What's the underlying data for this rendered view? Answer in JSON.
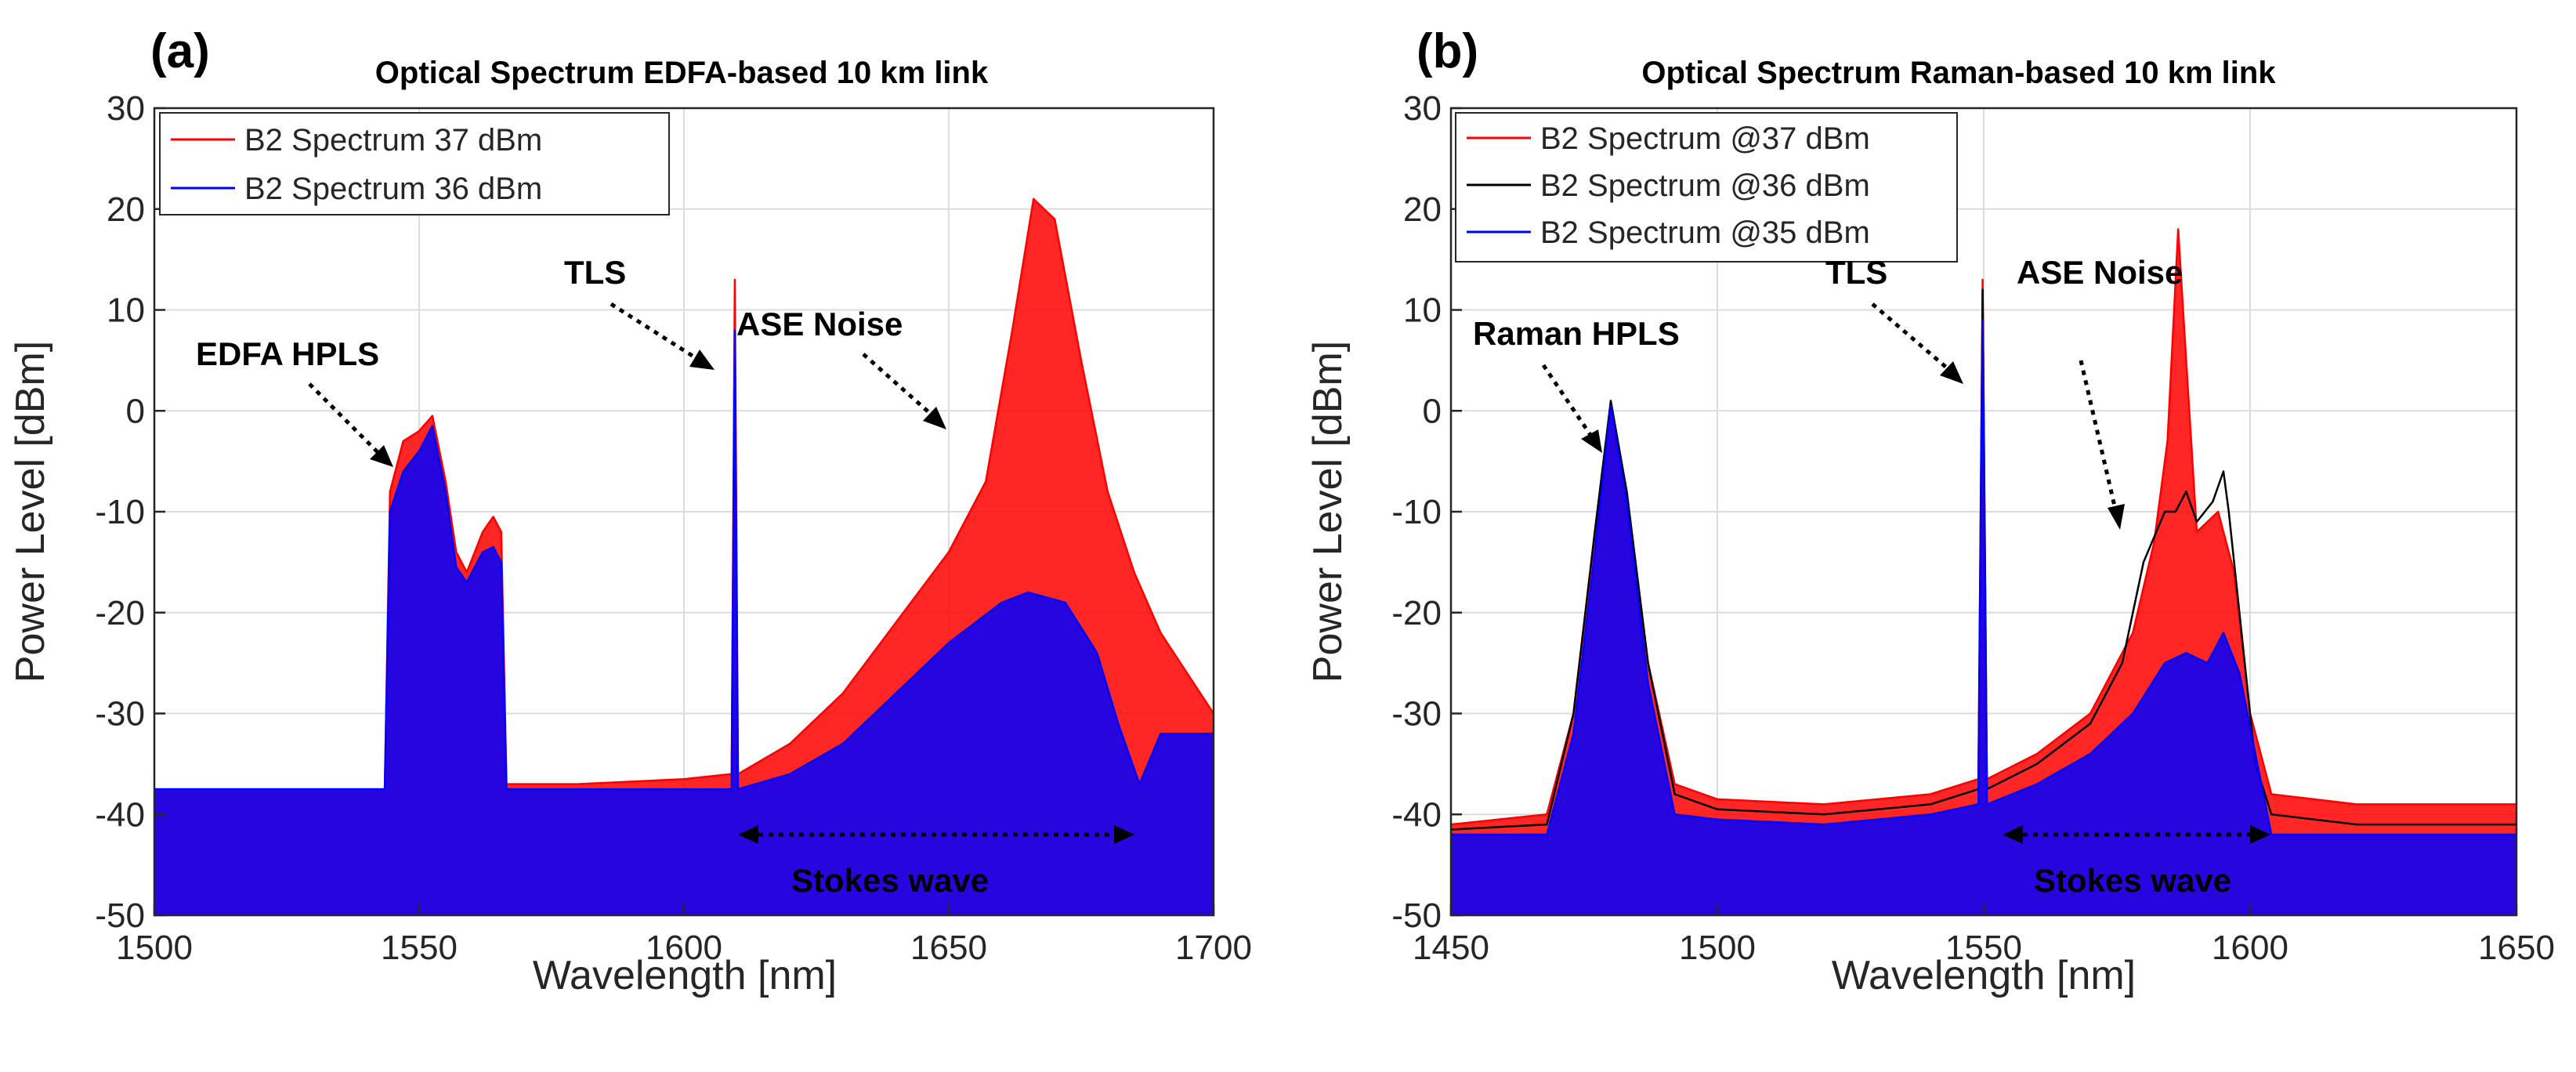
{
  "chart_data": [
    {
      "type": "line",
      "panel_label": "(a)",
      "title": "Optical Spectrum EDFA-based 10 km link",
      "xlabel": "Wavelength [nm]",
      "ylabel": "Power Level [dBm]",
      "xlim": [
        1500,
        1700
      ],
      "ylim": [
        -50,
        30
      ],
      "xticks": [
        1500,
        1550,
        1600,
        1650,
        1700
      ],
      "yticks": [
        -50,
        -40,
        -30,
        -20,
        -10,
        0,
        10,
        20,
        30
      ],
      "grid": true,
      "legend_position": "top-left",
      "series": [
        {
          "name": "B2 Spectrum 37 dBm",
          "color": "#ff0000",
          "line_width": 2.5,
          "fill_down": true,
          "points": [
            {
              "x": 1500,
              "y": -37.5
            },
            {
              "x": 1520,
              "y": -37.5
            },
            {
              "x": 1543.5,
              "y": -37.5
            },
            {
              "x": 1544.5,
              "y": -8
            },
            {
              "x": 1547,
              "y": -3
            },
            {
              "x": 1550,
              "y": -2
            },
            {
              "x": 1552.5,
              "y": -0.5
            },
            {
              "x": 1555,
              "y": -7
            },
            {
              "x": 1557,
              "y": -14
            },
            {
              "x": 1559,
              "y": -16
            },
            {
              "x": 1562,
              "y": -12
            },
            {
              "x": 1564,
              "y": -10.5
            },
            {
              "x": 1565.5,
              "y": -12
            },
            {
              "x": 1566.5,
              "y": -37
            },
            {
              "x": 1580,
              "y": -37
            },
            {
              "x": 1600,
              "y": -36.5
            },
            {
              "x": 1609,
              "y": -36
            },
            {
              "x": 1609.6,
              "y": 13
            },
            {
              "x": 1610.2,
              "y": -36
            },
            {
              "x": 1620,
              "y": -33
            },
            {
              "x": 1630,
              "y": -28
            },
            {
              "x": 1640,
              "y": -21
            },
            {
              "x": 1650,
              "y": -14
            },
            {
              "x": 1657,
              "y": -7
            },
            {
              "x": 1662,
              "y": 8
            },
            {
              "x": 1666,
              "y": 21
            },
            {
              "x": 1670,
              "y": 19
            },
            {
              "x": 1675,
              "y": 5
            },
            {
              "x": 1680,
              "y": -8
            },
            {
              "x": 1685,
              "y": -16
            },
            {
              "x": 1690,
              "y": -22
            },
            {
              "x": 1695,
              "y": -26
            },
            {
              "x": 1700,
              "y": -30
            }
          ]
        },
        {
          "name": "B2 Spectrum 36 dBm",
          "color": "#0000ff",
          "line_width": 2.5,
          "fill_down": true,
          "points": [
            {
              "x": 1500,
              "y": -37.5
            },
            {
              "x": 1543.5,
              "y": -37.5
            },
            {
              "x": 1544.5,
              "y": -10
            },
            {
              "x": 1547,
              "y": -6
            },
            {
              "x": 1550,
              "y": -4
            },
            {
              "x": 1552.5,
              "y": -1.5
            },
            {
              "x": 1555,
              "y": -8
            },
            {
              "x": 1557,
              "y": -15.5
            },
            {
              "x": 1559,
              "y": -17
            },
            {
              "x": 1562,
              "y": -14
            },
            {
              "x": 1564,
              "y": -13.5
            },
            {
              "x": 1565.5,
              "y": -15
            },
            {
              "x": 1566.5,
              "y": -37.5
            },
            {
              "x": 1600,
              "y": -37.5
            },
            {
              "x": 1609,
              "y": -37.5
            },
            {
              "x": 1609.6,
              "y": 8
            },
            {
              "x": 1610.2,
              "y": -37.5
            },
            {
              "x": 1620,
              "y": -36
            },
            {
              "x": 1630,
              "y": -33
            },
            {
              "x": 1640,
              "y": -28
            },
            {
              "x": 1650,
              "y": -23
            },
            {
              "x": 1660,
              "y": -19
            },
            {
              "x": 1665,
              "y": -18
            },
            {
              "x": 1672,
              "y": -19
            },
            {
              "x": 1678,
              "y": -24
            },
            {
              "x": 1682,
              "y": -31
            },
            {
              "x": 1686,
              "y": -37
            },
            {
              "x": 1690,
              "y": -32
            },
            {
              "x": 1700,
              "y": -32
            }
          ]
        }
      ],
      "annotations": [
        {
          "text": "EDFA HPLS",
          "x": 1512,
          "y": 2
        },
        {
          "text": "TLS",
          "x": 1589,
          "y": 12
        },
        {
          "text": "ASE Noise",
          "x": 1614,
          "y": 7
        },
        {
          "text": "Stokes wave",
          "x": 1632,
          "y": -48
        }
      ]
    },
    {
      "type": "line",
      "panel_label": "(b)",
      "title": "Optical Spectrum Raman-based 10 km link",
      "xlabel": "Wavelength [nm]",
      "ylabel": "Power Level [dBm]",
      "xlim": [
        1450,
        1650
      ],
      "ylim": [
        -50,
        30
      ],
      "xticks": [
        1450,
        1500,
        1550,
        1600,
        1650
      ],
      "yticks": [
        -50,
        -40,
        -30,
        -20,
        -10,
        0,
        10,
        20,
        30
      ],
      "grid": true,
      "legend_position": "top-left",
      "series": [
        {
          "name": "B2 Spectrum @37 dBm",
          "color": "#ff0000",
          "line_width": 2.5,
          "fill_down": true,
          "points": [
            {
              "x": 1450,
              "y": -41
            },
            {
              "x": 1468,
              "y": -40
            },
            {
              "x": 1473,
              "y": -30
            },
            {
              "x": 1477,
              "y": -12
            },
            {
              "x": 1480,
              "y": 0.5
            },
            {
              "x": 1483,
              "y": -8
            },
            {
              "x": 1487,
              "y": -25
            },
            {
              "x": 1492,
              "y": -37
            },
            {
              "x": 1500,
              "y": -38.5
            },
            {
              "x": 1520,
              "y": -39
            },
            {
              "x": 1540,
              "y": -38
            },
            {
              "x": 1549,
              "y": -36.5
            },
            {
              "x": 1549.8,
              "y": 13
            },
            {
              "x": 1550.6,
              "y": -36.5
            },
            {
              "x": 1560,
              "y": -34
            },
            {
              "x": 1570,
              "y": -30
            },
            {
              "x": 1578,
              "y": -22
            },
            {
              "x": 1582,
              "y": -13
            },
            {
              "x": 1584.5,
              "y": -3
            },
            {
              "x": 1586.5,
              "y": 18
            },
            {
              "x": 1588,
              "y": 5
            },
            {
              "x": 1590,
              "y": -12
            },
            {
              "x": 1594,
              "y": -10
            },
            {
              "x": 1597,
              "y": -16
            },
            {
              "x": 1600,
              "y": -30
            },
            {
              "x": 1604,
              "y": -38
            },
            {
              "x": 1620,
              "y": -39
            },
            {
              "x": 1650,
              "y": -39
            }
          ]
        },
        {
          "name": "B2 Spectrum @36 dBm",
          "color": "#000000",
          "line_width": 2.5,
          "fill_down": false,
          "points": [
            {
              "x": 1450,
              "y": -41.5
            },
            {
              "x": 1468,
              "y": -41
            },
            {
              "x": 1473,
              "y": -30
            },
            {
              "x": 1477,
              "y": -12
            },
            {
              "x": 1480,
              "y": 1
            },
            {
              "x": 1483,
              "y": -8
            },
            {
              "x": 1487,
              "y": -25
            },
            {
              "x": 1492,
              "y": -38
            },
            {
              "x": 1500,
              "y": -39.5
            },
            {
              "x": 1520,
              "y": -40
            },
            {
              "x": 1540,
              "y": -39
            },
            {
              "x": 1549,
              "y": -37.5
            },
            {
              "x": 1549.8,
              "y": 12
            },
            {
              "x": 1550.6,
              "y": -37.5
            },
            {
              "x": 1560,
              "y": -35
            },
            {
              "x": 1570,
              "y": -31
            },
            {
              "x": 1576,
              "y": -25
            },
            {
              "x": 1580,
              "y": -15
            },
            {
              "x": 1584,
              "y": -10
            },
            {
              "x": 1586,
              "y": -10
            },
            {
              "x": 1588,
              "y": -8
            },
            {
              "x": 1590,
              "y": -11
            },
            {
              "x": 1593,
              "y": -9
            },
            {
              "x": 1595,
              "y": -6
            },
            {
              "x": 1596,
              "y": -10
            },
            {
              "x": 1598,
              "y": -20
            },
            {
              "x": 1601,
              "y": -35
            },
            {
              "x": 1604,
              "y": -40
            },
            {
              "x": 1620,
              "y": -41
            },
            {
              "x": 1650,
              "y": -41
            }
          ]
        },
        {
          "name": "B2 Spectrum @35 dBm",
          "color": "#0000ff",
          "line_width": 2.5,
          "fill_down": true,
          "points": [
            {
              "x": 1450,
              "y": -42
            },
            {
              "x": 1468,
              "y": -42
            },
            {
              "x": 1473,
              "y": -32
            },
            {
              "x": 1477,
              "y": -14
            },
            {
              "x": 1480,
              "y": 0.5
            },
            {
              "x": 1483,
              "y": -9
            },
            {
              "x": 1487,
              "y": -27
            },
            {
              "x": 1492,
              "y": -40
            },
            {
              "x": 1500,
              "y": -40.5
            },
            {
              "x": 1520,
              "y": -41
            },
            {
              "x": 1540,
              "y": -40
            },
            {
              "x": 1549,
              "y": -39
            },
            {
              "x": 1549.8,
              "y": 9
            },
            {
              "x": 1550.6,
              "y": -39
            },
            {
              "x": 1560,
              "y": -37
            },
            {
              "x": 1570,
              "y": -34
            },
            {
              "x": 1578,
              "y": -30
            },
            {
              "x": 1584,
              "y": -25
            },
            {
              "x": 1588,
              "y": -24
            },
            {
              "x": 1592,
              "y": -25
            },
            {
              "x": 1595,
              "y": -22
            },
            {
              "x": 1598,
              "y": -26
            },
            {
              "x": 1601,
              "y": -34
            },
            {
              "x": 1604,
              "y": -42
            },
            {
              "x": 1620,
              "y": -42
            },
            {
              "x": 1650,
              "y": -42
            }
          ]
        }
      ],
      "annotations": [
        {
          "text": "Raman HPLS",
          "x": 1459,
          "y": 4
        },
        {
          "text": "TLS",
          "x": 1532,
          "y": 12
        },
        {
          "text": "ASE Noise",
          "x": 1553,
          "y": 13
        },
        {
          "text": "Stokes wave",
          "x": 1571,
          "y": -48
        }
      ]
    }
  ]
}
